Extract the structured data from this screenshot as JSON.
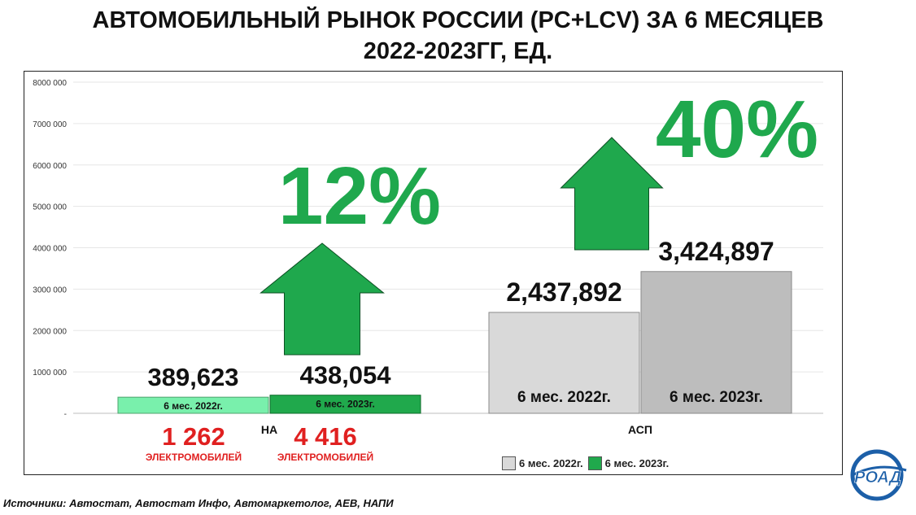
{
  "title_line1": "АВТОМОБИЛЬНЫЙ РЫНОК РОССИИ (PC+LCV) ЗА 6 МЕСЯЦЕВ",
  "title_line2": "2022-2023ГГ, ЕД.",
  "source": "Источники: Автостат, Автостат Инфо, Автомаркетолог, АЕВ, НАПИ",
  "logo_text": "РОАД",
  "colors": {
    "na_2022": "#79f0ac",
    "na_2023": "#20a94c",
    "asp_2022": "#d9d9d9",
    "asp_2023": "#bdbdbd",
    "growth": "#1fa84d",
    "ev_red": "#e02020",
    "logo_blue": "#1c5fa8"
  },
  "chart_data": {
    "type": "bar",
    "categories": [
      "НА",
      "АСП"
    ],
    "series": [
      {
        "name": "6 мес. 2022г.",
        "values": [
          389623,
          2437892
        ]
      },
      {
        "name": "6 мес. 2023г.",
        "values": [
          438054,
          3424897
        ]
      }
    ],
    "value_labels": [
      [
        "389,623",
        "2,437,892"
      ],
      [
        "438,054",
        "3,424,897"
      ]
    ],
    "bar_inner_labels": [
      "6 мес. 2022г.",
      "6 мес. 2023г."
    ],
    "ylim": [
      0,
      8000000
    ],
    "yticks": [
      {
        "value": 0,
        "label": "-"
      },
      {
        "value": 1000000,
        "label": "1000 000"
      },
      {
        "value": 2000000,
        "label": "2000 000"
      },
      {
        "value": 3000000,
        "label": "3000 000"
      },
      {
        "value": 4000000,
        "label": "4000 000"
      },
      {
        "value": 5000000,
        "label": "5000 000"
      },
      {
        "value": 6000000,
        "label": "6000 000"
      },
      {
        "value": 7000000,
        "label": "7000 000"
      },
      {
        "value": 8000000,
        "label": "8000 000"
      }
    ],
    "growth": [
      "12%",
      "40%"
    ],
    "ev_annotations": [
      {
        "value": "1 262",
        "label": "ЭЛЕКТРОМОБИЛЕЙ"
      },
      {
        "value": "4 416",
        "label": "ЭЛЕКТРОМОБИЛЕЙ"
      }
    ],
    "grid": true,
    "legend": "bottom"
  }
}
